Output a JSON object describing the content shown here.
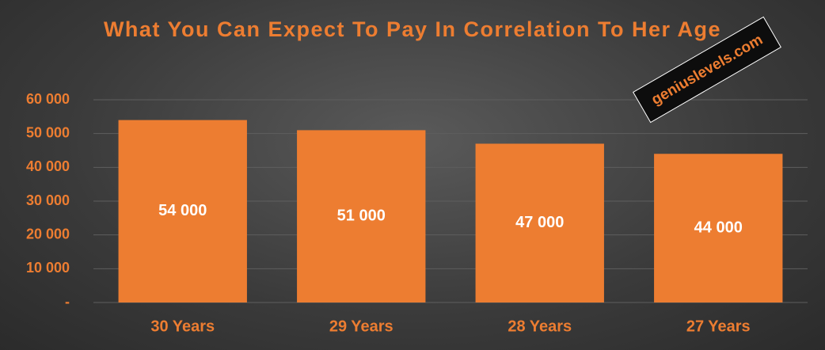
{
  "chart_data": {
    "type": "bar",
    "title": "What You Can Expect To Pay In Correlation To Her Age",
    "annotation": "geniuslevels.com",
    "categories": [
      "30 Years",
      "29 Years",
      "28 Years",
      "27 Years"
    ],
    "values": [
      54000,
      51000,
      47000,
      44000
    ],
    "value_labels": [
      "54 000",
      "51 000",
      "47 000",
      "44 000"
    ],
    "color": "#ed7d31",
    "ylim": [
      0,
      60000
    ],
    "yticks": [
      {
        "value": 0,
        "label": "-"
      },
      {
        "value": 10000,
        "label": "10 000"
      },
      {
        "value": 20000,
        "label": "20 000"
      },
      {
        "value": 30000,
        "label": "30 000"
      },
      {
        "value": 40000,
        "label": "40 000"
      },
      {
        "value": 50000,
        "label": "50 000"
      },
      {
        "value": 60000,
        "label": "60 000"
      }
    ],
    "grid": true
  }
}
